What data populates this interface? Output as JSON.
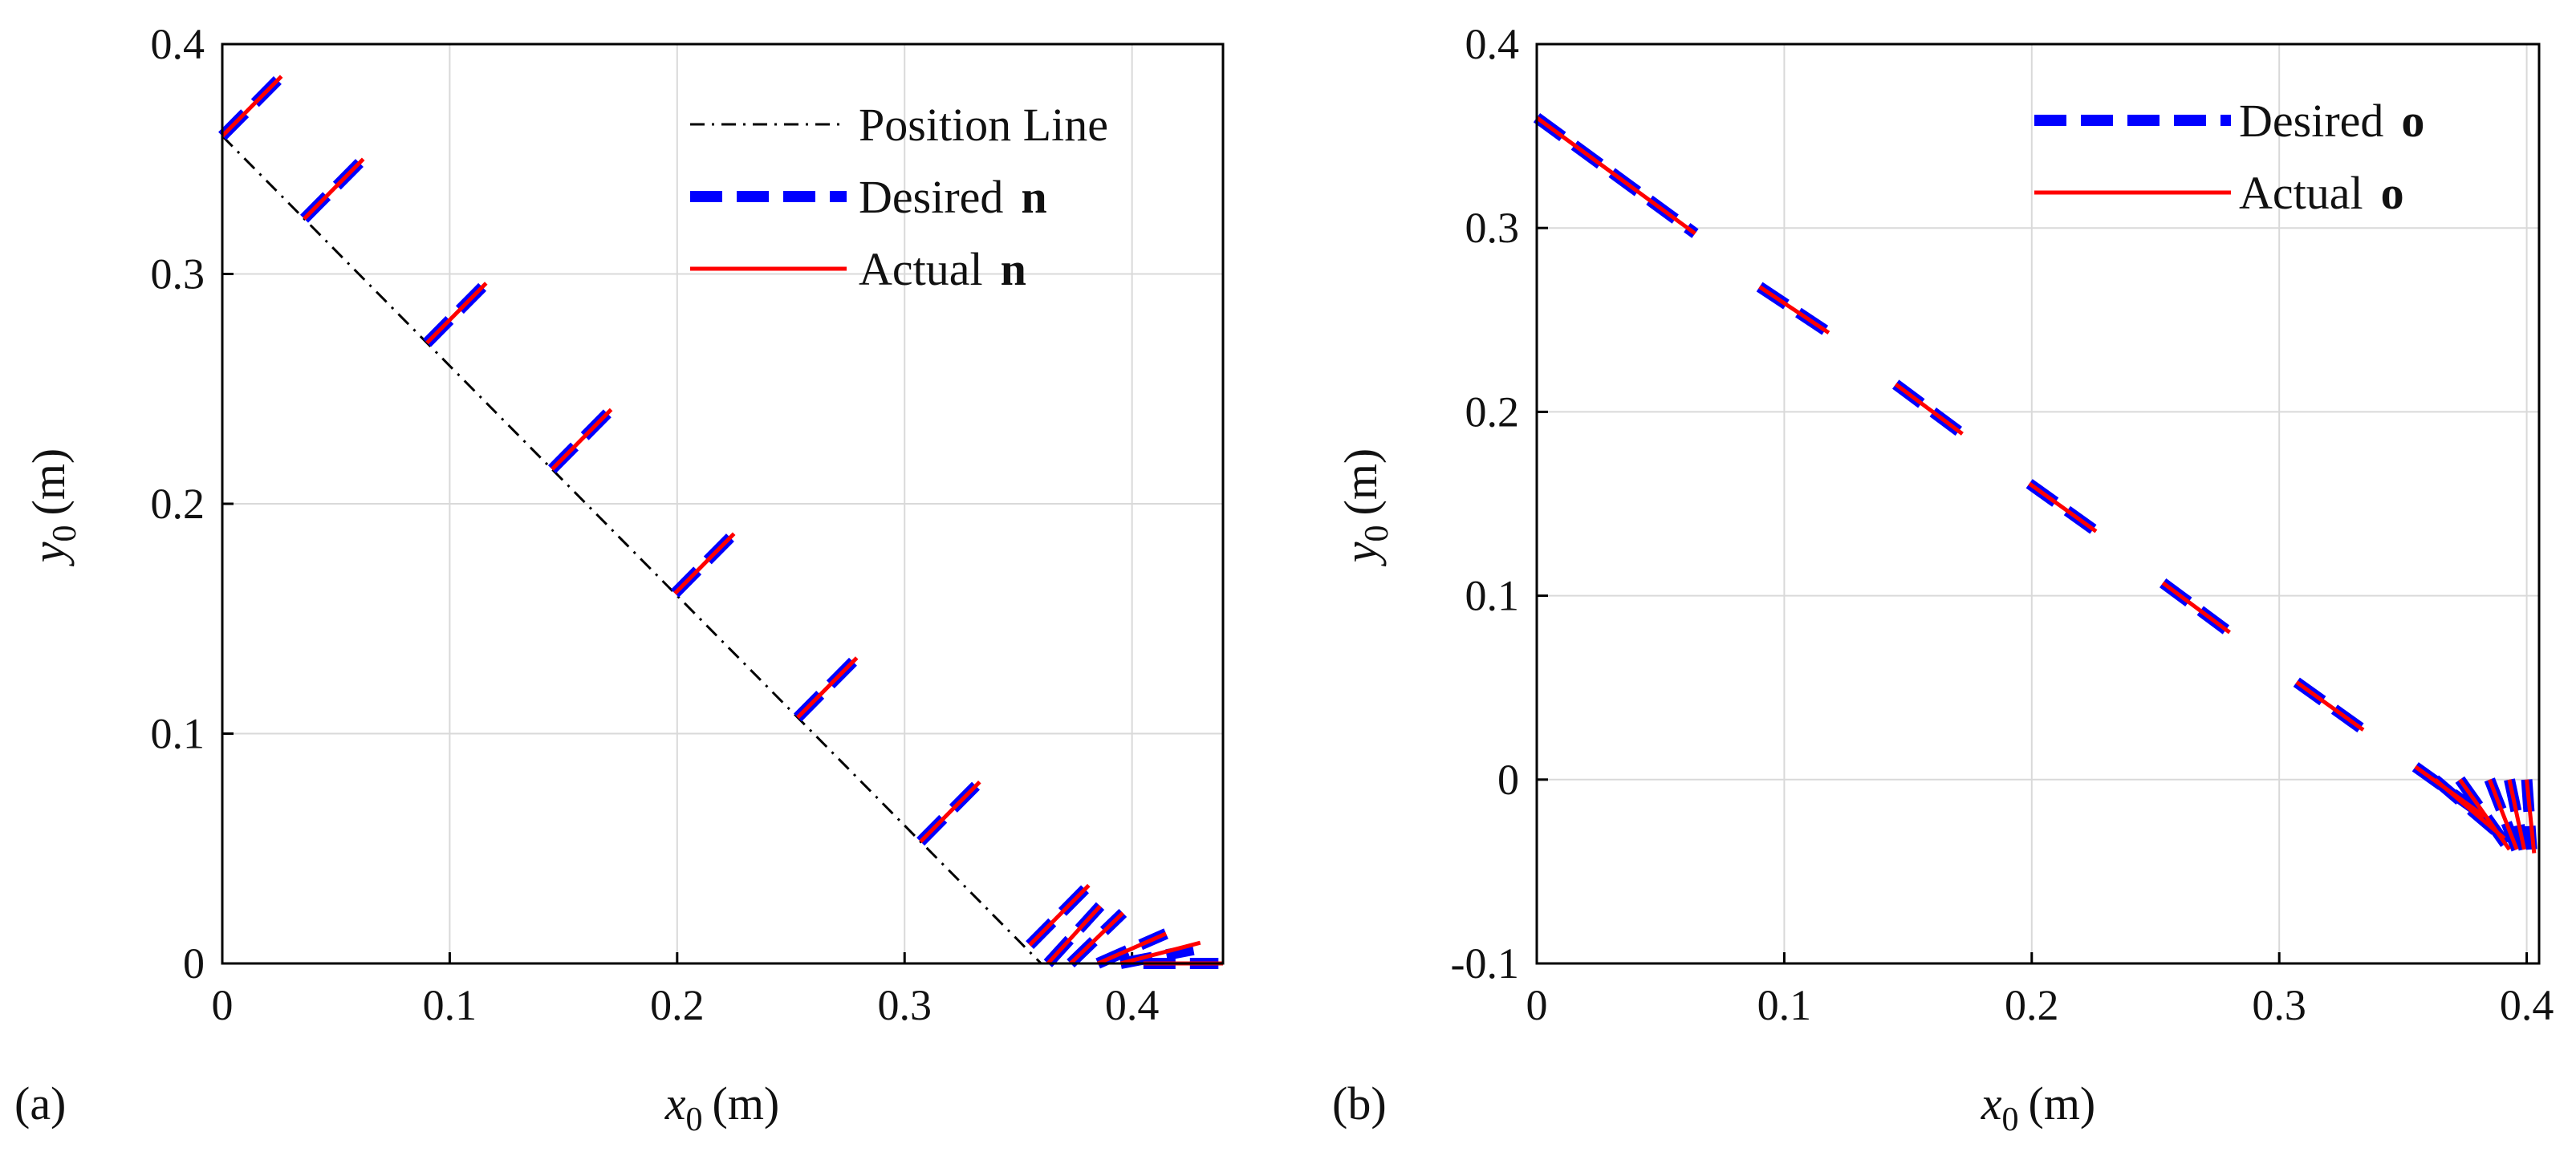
{
  "chart_data": [
    {
      "type": "line",
      "panel_label": "(a)",
      "xlabel_var": "x",
      "xlabel_sub": "0",
      "xlabel_unit": "(m)",
      "ylabel_var": "y",
      "ylabel_sub": "0",
      "ylabel_unit": "(m)",
      "xlim": [
        0,
        0.44
      ],
      "ylim": [
        0,
        0.4
      ],
      "xticks": [
        "0",
        "0.1",
        "0.2",
        "0.3",
        "0.4"
      ],
      "yticks": [
        "0",
        "0.1",
        "0.2",
        "0.3",
        "0.4"
      ],
      "grid": true,
      "legend": {
        "placement": "top-right",
        "entries": [
          {
            "text": "Position Line",
            "bold": ""
          },
          {
            "text": "Desired",
            "bold": "n"
          },
          {
            "text": "Actual",
            "bold": "n"
          }
        ]
      },
      "series": [
        {
          "name": "Position Line",
          "style": "dash-dot",
          "color": "#000000",
          "points": [
            [
              0,
              0.36
            ],
            [
              0.36,
              0
            ]
          ]
        },
        {
          "name": "Desired n",
          "style": "dashed",
          "color": "#0000ff",
          "segments": [
            [
              [
                0,
                0.36
              ],
              [
                0.026,
                0.386
              ]
            ],
            [
              [
                0.036,
                0.324
              ],
              [
                0.062,
                0.35
              ]
            ],
            [
              [
                0.09,
                0.27
              ],
              [
                0.116,
                0.296
              ]
            ],
            [
              [
                0.145,
                0.215
              ],
              [
                0.171,
                0.241
              ]
            ],
            [
              [
                0.199,
                0.161
              ],
              [
                0.225,
                0.187
              ]
            ],
            [
              [
                0.253,
                0.107
              ],
              [
                0.279,
                0.133
              ]
            ],
            [
              [
                0.307,
                0.053
              ],
              [
                0.333,
                0.079
              ]
            ],
            [
              [
                0.355,
                0.008
              ],
              [
                0.381,
                0.034
              ]
            ],
            [
              [
                0.363,
                0.0
              ],
              [
                0.386,
                0.025
              ]
            ],
            [
              [
                0.373,
                0.0
              ],
              [
                0.396,
                0.022
              ]
            ],
            [
              [
                0.385,
                0.0
              ],
              [
                0.415,
                0.013
              ]
            ],
            [
              [
                0.395,
                0.0
              ],
              [
                0.427,
                0.006
              ]
            ],
            [
              [
                0.405,
                0.0
              ],
              [
                0.438,
                0.0
              ]
            ]
          ]
        },
        {
          "name": "Actual n",
          "style": "solid",
          "color": "#ff0000",
          "segments": [
            [
              [
                0,
                0.36
              ],
              [
                0.026,
                0.386
              ]
            ],
            [
              [
                0.036,
                0.324
              ],
              [
                0.062,
                0.35
              ]
            ],
            [
              [
                0.09,
                0.27
              ],
              [
                0.116,
                0.296
              ]
            ],
            [
              [
                0.145,
                0.215
              ],
              [
                0.171,
                0.241
              ]
            ],
            [
              [
                0.199,
                0.161
              ],
              [
                0.225,
                0.187
              ]
            ],
            [
              [
                0.253,
                0.107
              ],
              [
                0.279,
                0.133
              ]
            ],
            [
              [
                0.307,
                0.053
              ],
              [
                0.333,
                0.079
              ]
            ],
            [
              [
                0.355,
                0.008
              ],
              [
                0.381,
                0.034
              ]
            ],
            [
              [
                0.363,
                0.0
              ],
              [
                0.386,
                0.025
              ]
            ],
            [
              [
                0.373,
                0.0
              ],
              [
                0.396,
                0.022
              ]
            ],
            [
              [
                0.385,
                0.0
              ],
              [
                0.415,
                0.013
              ]
            ],
            [
              [
                0.395,
                0.0
              ],
              [
                0.43,
                0.009
              ]
            ],
            [
              [
                0.405,
                0.0
              ],
              [
                0.44,
                0.0
              ]
            ]
          ]
        }
      ]
    },
    {
      "type": "line",
      "panel_label": "(b)",
      "xlabel_var": "x",
      "xlabel_sub": "0",
      "xlabel_unit": "(m)",
      "ylabel_var": "y",
      "ylabel_sub": "0",
      "ylabel_unit": "(m)",
      "xlim": [
        0,
        0.405
      ],
      "ylim": [
        -0.1,
        0.4
      ],
      "xticks": [
        "0",
        "0.1",
        "0.2",
        "0.3",
        "0.4"
      ],
      "yticks": [
        "-0.1",
        "0",
        "0.1",
        "0.2",
        "0.3",
        "0.4"
      ],
      "grid": true,
      "legend": {
        "placement": "top-right",
        "entries": [
          {
            "text": "Desired",
            "bold": "o"
          },
          {
            "text": "Actual",
            "bold": "o"
          }
        ]
      },
      "series": [
        {
          "name": "Desired o",
          "style": "dashed",
          "color": "#0000ff",
          "segments": [
            [
              [
                0,
                0.36
              ],
              [
                0.064,
                0.297
              ]
            ],
            [
              [
                0.09,
                0.268
              ],
              [
                0.118,
                0.243
              ]
            ],
            [
              [
                0.145,
                0.215
              ],
              [
                0.172,
                0.188
              ]
            ],
            [
              [
                0.199,
                0.161
              ],
              [
                0.226,
                0.135
              ]
            ],
            [
              [
                0.253,
                0.107
              ],
              [
                0.28,
                0.08
              ]
            ],
            [
              [
                0.307,
                0.053
              ],
              [
                0.334,
                0.027
              ]
            ],
            [
              [
                0.355,
                0.007
              ],
              [
                0.383,
                -0.02
              ]
            ],
            [
              [
                0.363,
                0.0
              ],
              [
                0.391,
                -0.032
              ]
            ],
            [
              [
                0.373,
                0.0
              ],
              [
                0.393,
                -0.038
              ]
            ],
            [
              [
                0.385,
                0.0
              ],
              [
                0.396,
                -0.038
              ]
            ],
            [
              [
                0.393,
                0.0
              ],
              [
                0.399,
                -0.038
              ]
            ],
            [
              [
                0.4,
                0.0
              ],
              [
                0.402,
                -0.038
              ]
            ]
          ]
        },
        {
          "name": "Actual o",
          "style": "solid",
          "color": "#ff0000",
          "segments": [
            [
              [
                0,
                0.36
              ],
              [
                0.064,
                0.297
              ]
            ],
            [
              [
                0.09,
                0.268
              ],
              [
                0.118,
                0.243
              ]
            ],
            [
              [
                0.145,
                0.215
              ],
              [
                0.172,
                0.188
              ]
            ],
            [
              [
                0.199,
                0.161
              ],
              [
                0.226,
                0.135
              ]
            ],
            [
              [
                0.253,
                0.107
              ],
              [
                0.28,
                0.08
              ]
            ],
            [
              [
                0.307,
                0.053
              ],
              [
                0.334,
                0.027
              ]
            ],
            [
              [
                0.355,
                0.007
              ],
              [
                0.383,
                -0.02
              ]
            ],
            [
              [
                0.363,
                0.0
              ],
              [
                0.391,
                -0.032
              ]
            ],
            [
              [
                0.373,
                0.0
              ],
              [
                0.393,
                -0.038
              ]
            ],
            [
              [
                0.385,
                0.0
              ],
              [
                0.396,
                -0.038
              ]
            ],
            [
              [
                0.393,
                0.0
              ],
              [
                0.399,
                -0.038
              ]
            ],
            [
              [
                0.4,
                0.0
              ],
              [
                0.403,
                -0.04
              ]
            ]
          ]
        }
      ]
    }
  ]
}
